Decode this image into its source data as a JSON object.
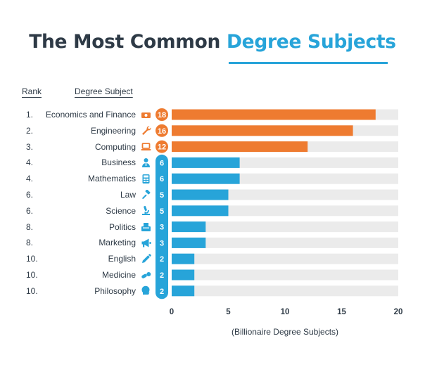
{
  "header": {
    "title_part1": "The Most Common ",
    "title_part2": "Degree Subjects",
    "col_rank": "Rank",
    "col_subject": "Degree Subject"
  },
  "colors": {
    "title_dark": "#2e3a46",
    "accent_blue": "#27a4d9",
    "orange": "#ee7b30",
    "track": "#ebebeb"
  },
  "chart_data": {
    "type": "bar",
    "orientation": "horizontal",
    "title": "The Most Common Degree Subjects",
    "xlabel": "(Billionaire Degree Subjects)",
    "xlim": [
      0,
      20
    ],
    "xticks": [
      0,
      5,
      10,
      15,
      20
    ],
    "grid": false,
    "rows": [
      {
        "rank": "1.",
        "category": "Economics and Finance",
        "value": 18,
        "color": "#ee7b30",
        "icon": "money-icon"
      },
      {
        "rank": "2.",
        "category": "Engineering",
        "value": 16,
        "color": "#ee7b30",
        "icon": "wrench-icon"
      },
      {
        "rank": "3.",
        "category": "Computing",
        "value": 12,
        "color": "#ee7b30",
        "icon": "laptop-icon"
      },
      {
        "rank": "4.",
        "category": "Business",
        "value": 6,
        "color": "#27a4d9",
        "icon": "businessman-icon"
      },
      {
        "rank": "4.",
        "category": "Mathematics",
        "value": 6,
        "color": "#27a4d9",
        "icon": "calculator-icon"
      },
      {
        "rank": "6.",
        "category": "Law",
        "value": 5,
        "color": "#27a4d9",
        "icon": "gavel-icon"
      },
      {
        "rank": "6.",
        "category": "Science",
        "value": 5,
        "color": "#27a4d9",
        "icon": "microscope-icon"
      },
      {
        "rank": "8.",
        "category": "Politics",
        "value": 3,
        "color": "#27a4d9",
        "icon": "ballot-box-icon"
      },
      {
        "rank": "8.",
        "category": "Marketing",
        "value": 3,
        "color": "#27a4d9",
        "icon": "megaphone-icon"
      },
      {
        "rank": "10.",
        "category": "English",
        "value": 2,
        "color": "#27a4d9",
        "icon": "pencil-icon"
      },
      {
        "rank": "10.",
        "category": "Medicine",
        "value": 2,
        "color": "#27a4d9",
        "icon": "pills-icon"
      },
      {
        "rank": "10.",
        "category": "Philosophy",
        "value": 2,
        "color": "#27a4d9",
        "icon": "head-icon"
      }
    ]
  }
}
